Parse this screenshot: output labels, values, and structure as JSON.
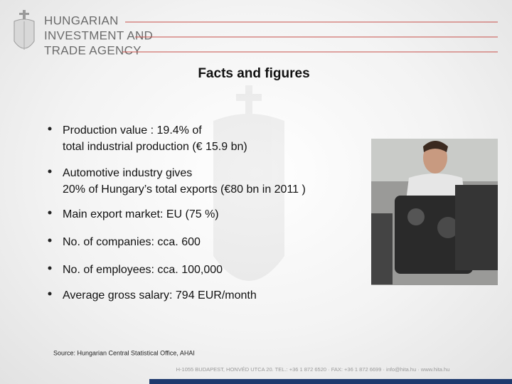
{
  "header": {
    "logo_lines": [
      "HUNGARIAN",
      "INVESTMENT AND",
      "TRADE AGENCY"
    ]
  },
  "title": "Facts and figures",
  "bullets": [
    [
      "Production value : 19.4% of",
      "total industrial production (€ 15.9 bn)"
    ],
    [
      "Automotive industry gives",
      "20% of Hungary’s total exports (€80 bn in 2011 )"
    ],
    [
      "Main export market: EU (75 %)"
    ],
    [
      "No. of companies: cca. 600"
    ],
    [
      "No. of employees: cca. 100,000"
    ],
    [
      "Average gross salary: 794 EUR/month"
    ]
  ],
  "source": "Source: Hungarian Central Statistical Office, AHAI",
  "footer": "H-1055 BUDAPEST, HONVÉD UTCA 20. TEL.: +36 1 872 6520 · FAX: +36 1 872 6699 · info@hita.hu · www.hita.hu"
}
